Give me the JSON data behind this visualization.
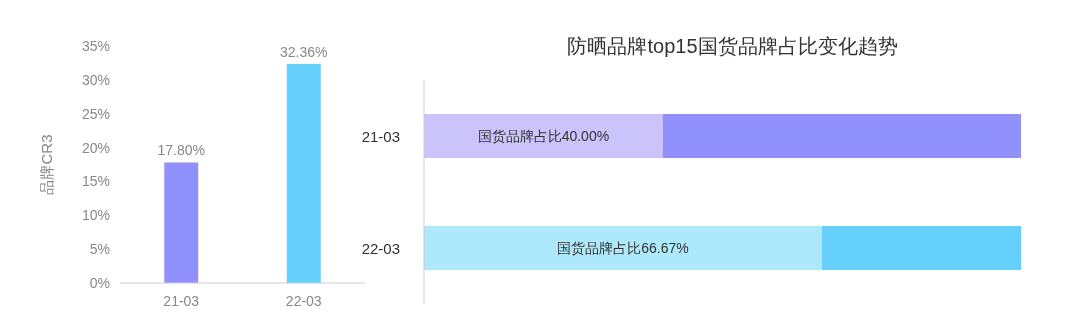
{
  "chart_data": [
    {
      "type": "bar",
      "ylabel": "品牌CR3",
      "categories": [
        "21-03",
        "22-03"
      ],
      "values": [
        17.8,
        32.36
      ],
      "colors": [
        "#9191fd",
        "#66d0fd"
      ],
      "value_labels": [
        "17.80%",
        "32.36%"
      ],
      "ylim": [
        0,
        35
      ],
      "yticks": [
        {
          "value": 0,
          "label": "0%"
        },
        {
          "value": 5,
          "label": "5%"
        },
        {
          "value": 10,
          "label": "10%"
        },
        {
          "value": 15,
          "label": "15%"
        },
        {
          "value": 20,
          "label": "20%"
        },
        {
          "value": 25,
          "label": "25%"
        },
        {
          "value": 30,
          "label": "30%"
        },
        {
          "value": 35,
          "label": "35%"
        }
      ]
    },
    {
      "type": "bar",
      "title": "防晒品牌top15国货品牌占比变化趋势",
      "orientation": "horizontal",
      "stacked": true,
      "categories": [
        "21-03",
        "22-03"
      ],
      "series": [
        {
          "colors": [
            "#cbc3fb",
            "#aee9fb"
          ],
          "values": [
            40.0,
            66.67
          ],
          "value_labels": [
            "国货品牌占比40.00%",
            "国货品牌占比66.67%"
          ]
        },
        {
          "colors": [
            "#9191fd",
            "#66d0fd"
          ],
          "values": [
            60.0,
            33.33
          ]
        }
      ]
    }
  ]
}
